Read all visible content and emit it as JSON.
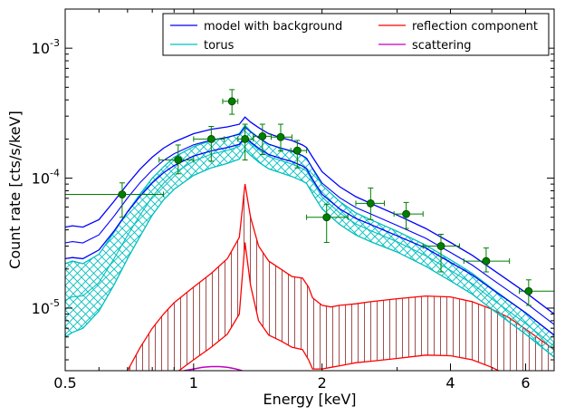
{
  "chart_data": {
    "type": "line",
    "xlabel": "Energy [keV]",
    "ylabel": "Count rate [cts/s/keV]",
    "xscale": "log",
    "yscale": "log",
    "xlim": [
      0.5,
      7.0
    ],
    "ylim": [
      3.3e-06,
      0.002
    ],
    "x_ticks": [
      {
        "value": 0.5,
        "label": "0.5"
      },
      {
        "value": 1,
        "label": "1"
      },
      {
        "value": 2,
        "label": "2"
      },
      {
        "value": 4,
        "label": "4"
      },
      {
        "value": 6,
        "label": "6"
      }
    ],
    "y_ticks": [
      {
        "value": 1e-05,
        "base": "10",
        "exp": "-5"
      },
      {
        "value": 0.0001,
        "base": "10",
        "exp": "-4"
      },
      {
        "value": 0.001,
        "base": "10",
        "exp": "-3"
      }
    ],
    "legend": {
      "placement": "top-right",
      "columns": 2,
      "entries": [
        {
          "name": "model with background",
          "color": "#0000ff"
        },
        {
          "name": "torus",
          "color": "#00bfbf"
        },
        {
          "name": "reflection component",
          "color": "#ff0000"
        },
        {
          "name": "scattering",
          "color": "#bf00bf"
        }
      ]
    },
    "series": [
      {
        "name": "model with background",
        "color": "#0000ff",
        "x": [
          0.5,
          0.52,
          0.55,
          0.6,
          0.65,
          0.7,
          0.75,
          0.8,
          0.85,
          0.9,
          1.0,
          1.1,
          1.2,
          1.28,
          1.32,
          1.36,
          1.42,
          1.5,
          1.6,
          1.7,
          1.8,
          1.84,
          1.9,
          2.0,
          2.2,
          2.4,
          2.6,
          3.0,
          3.5,
          4.0,
          4.5,
          5.0,
          6.0,
          7.0
        ],
        "y": [
          4.2e-05,
          4.3e-05,
          4.2e-05,
          4.8e-05,
          6.6e-05,
          9e-05,
          0.000118,
          0.000145,
          0.00017,
          0.00019,
          0.00022,
          0.000238,
          0.000248,
          0.00026,
          0.000295,
          0.00027,
          0.000245,
          0.00022,
          0.000205,
          0.000195,
          0.00018,
          0.000172,
          0.000145,
          0.000112,
          8.6e-05,
          7.2e-05,
          6.4e-05,
          5.2e-05,
          4.1e-05,
          3.2e-05,
          2.55e-05,
          2e-05,
          1.32e-05,
          9e-06
        ],
        "band_lower": [
          2.4e-05,
          2.45e-05,
          2.4e-05,
          2.8e-05,
          3.9e-05,
          5.5e-05,
          7.3e-05,
          9.2e-05,
          0.00011,
          0.000125,
          0.000148,
          0.000162,
          0.000172,
          0.000182,
          0.000208,
          0.00019,
          0.00017,
          0.000152,
          0.000142,
          0.000134,
          0.000124,
          0.000118,
          9.8e-05,
          7.5e-05,
          5.8e-05,
          4.9e-05,
          4.4e-05,
          3.6e-05,
          2.9e-05,
          2.25e-05,
          1.8e-05,
          1.4e-05,
          9.2e-06,
          6.2e-06
        ]
      },
      {
        "name": "torus",
        "color": "#00bfbf",
        "x": [
          0.5,
          0.52,
          0.55,
          0.6,
          0.65,
          0.7,
          0.75,
          0.8,
          0.85,
          0.9,
          1.0,
          1.1,
          1.2,
          1.28,
          1.32,
          1.36,
          1.42,
          1.5,
          1.6,
          1.7,
          1.8,
          1.84,
          1.9,
          2.0,
          2.2,
          2.4,
          2.6,
          3.0,
          3.5,
          4.0,
          4.5,
          5.0,
          6.0,
          7.0
        ],
        "y": [
          2.2e-05,
          2.3e-05,
          2.2e-05,
          2.6e-05,
          3.8e-05,
          5.5e-05,
          7.6e-05,
          0.0001,
          0.000122,
          0.000145,
          0.000175,
          0.000195,
          0.000205,
          0.00022,
          0.000255,
          0.00023,
          0.000205,
          0.000182,
          0.00017,
          0.00016,
          0.000148,
          0.000142,
          0.000118,
          8.8e-05,
          6.6e-05,
          5.4e-05,
          4.8e-05,
          3.9e-05,
          3.05e-05,
          2.35e-05,
          1.85e-05,
          1.42e-05,
          9.2e-06,
          6.2e-06
        ],
        "band_lower": [
          6e-06,
          6.5e-06,
          7e-06,
          9.5e-06,
          1.5e-05,
          2.4e-05,
          3.6e-05,
          5.2e-05,
          6.8e-05,
          8.2e-05,
          0.000105,
          0.00012,
          0.00013,
          0.00014,
          0.000165,
          0.00015,
          0.000133,
          0.000118,
          0.00011,
          0.000103,
          9.5e-05,
          9.1e-05,
          7.6e-05,
          5.8e-05,
          4.4e-05,
          3.65e-05,
          3.25e-05,
          2.7e-05,
          2.1e-05,
          1.62e-05,
          1.28e-05,
          9.8e-06,
          6.3e-06,
          4.2e-06
        ]
      },
      {
        "name": "reflection component",
        "color": "#ff0000",
        "x": [
          0.7,
          0.75,
          0.8,
          0.85,
          0.9,
          1.0,
          1.1,
          1.2,
          1.28,
          1.32,
          1.36,
          1.42,
          1.5,
          1.6,
          1.7,
          1.8,
          1.86,
          1.9,
          2.0,
          2.1,
          2.2,
          2.4,
          2.6,
          3.0,
          3.5,
          4.0,
          4.5,
          5.0,
          5.5,
          6.0,
          7.0
        ],
        "y": [
          3.3e-06,
          5e-06,
          7e-06,
          9e-06,
          1.1e-05,
          1.45e-05,
          1.85e-05,
          2.4e-05,
          3.5e-05,
          9e-05,
          5e-05,
          3e-05,
          2.3e-05,
          2e-05,
          1.75e-05,
          1.7e-05,
          1.45e-05,
          1.2e-05,
          1.05e-05,
          1.02e-05,
          1.05e-05,
          1.08e-05,
          1.12e-05,
          1.18e-05,
          1.24e-05,
          1.22e-05,
          1.12e-05,
          9.8e-06,
          8.4e-06,
          6.9e-06,
          4.8e-06
        ],
        "band_lower": [
          1.2e-06,
          1.6e-06,
          2.1e-06,
          2.6e-06,
          3.1e-06,
          4e-06,
          5e-06,
          6.3e-06,
          9e-06,
          3.2e-05,
          1.5e-05,
          8e-06,
          6.2e-06,
          5.6e-06,
          5e-06,
          4.8e-06,
          4e-06,
          3.4e-06,
          3.4e-06,
          3.5e-06,
          3.6e-06,
          3.8e-06,
          3.9e-06,
          4.1e-06,
          4.35e-06,
          4.3e-06,
          4e-06,
          3.5e-06,
          3e-06,
          2.5e-06,
          1.7e-06
        ]
      },
      {
        "name": "scattering",
        "color": "#bf00bf",
        "x": [
          0.95,
          1.0,
          1.05,
          1.1,
          1.15,
          1.2,
          1.25,
          1.3
        ],
        "y": [
          3.3e-06,
          3.4e-06,
          3.5e-06,
          3.55e-06,
          3.55e-06,
          3.5e-06,
          3.42e-06,
          3.3e-06
        ]
      }
    ],
    "data_points": {
      "color": "#007f00",
      "points": [
        {
          "x": 0.68,
          "y": 7.5e-05,
          "xerr": [
            0.5,
            0.85
          ],
          "yerr": [
            5e-05,
            9.2e-05
          ]
        },
        {
          "x": 0.92,
          "y": 0.000138,
          "xerr": [
            0.83,
            1.0
          ],
          "yerr": [
            0.000108,
            0.00018
          ]
        },
        {
          "x": 1.1,
          "y": 0.0002,
          "xerr": [
            1.0,
            1.18
          ],
          "yerr": [
            0.000135,
            0.00025
          ]
        },
        {
          "x": 1.23,
          "y": 0.00039,
          "xerr": [
            1.17,
            1.27
          ],
          "yerr": [
            0.00031,
            0.00048
          ]
        },
        {
          "x": 1.32,
          "y": 0.0002,
          "xerr": [
            1.27,
            1.38
          ],
          "yerr": [
            0.000138,
            0.00026
          ]
        },
        {
          "x": 1.45,
          "y": 0.00021,
          "xerr": [
            1.38,
            1.52
          ],
          "yerr": [
            0.000152,
            0.00026
          ]
        },
        {
          "x": 1.6,
          "y": 0.000207,
          "xerr": [
            1.52,
            1.7
          ],
          "yerr": [
            0.000162,
            0.00026
          ]
        },
        {
          "x": 1.75,
          "y": 0.000163,
          "xerr": [
            1.69,
            1.84
          ],
          "yerr": [
            0.00012,
            0.000195
          ]
        },
        {
          "x": 2.05,
          "y": 5e-05,
          "xerr": [
            1.84,
            2.3
          ],
          "yerr": [
            3.2e-05,
            6.3e-05
          ]
        },
        {
          "x": 2.6,
          "y": 6.4e-05,
          "xerr": [
            2.4,
            2.8
          ],
          "yerr": [
            4.8e-05,
            8.4e-05
          ]
        },
        {
          "x": 3.15,
          "y": 5.3e-05,
          "xerr": [
            2.95,
            3.45
          ],
          "yerr": [
            4.1e-05,
            6.5e-05
          ]
        },
        {
          "x": 3.8,
          "y": 3e-05,
          "xerr": [
            3.45,
            4.2
          ],
          "yerr": [
            1.9e-05,
            3.7e-05
          ]
        },
        {
          "x": 4.85,
          "y": 2.3e-05,
          "xerr": [
            4.3,
            5.5
          ],
          "yerr": [
            1.9e-05,
            2.9e-05
          ]
        },
        {
          "x": 6.1,
          "y": 1.35e-05,
          "xerr": [
            5.8,
            7.0
          ],
          "yerr": [
            1.05e-05,
            1.65e-05
          ]
        }
      ]
    }
  }
}
